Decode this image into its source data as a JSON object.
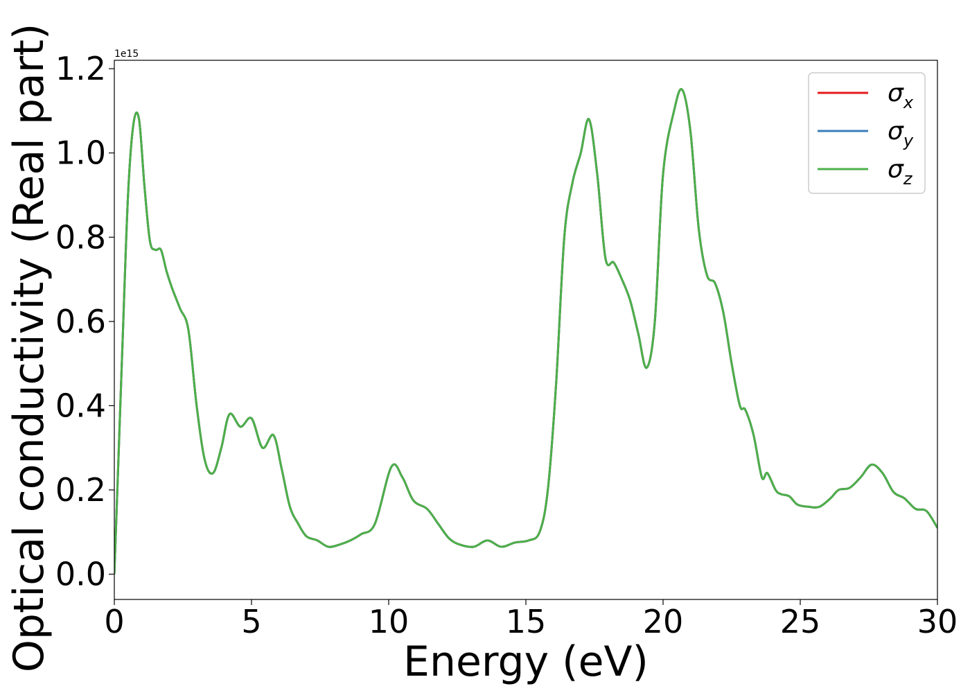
{
  "chart_data": {
    "type": "line",
    "xlabel": "Energy (eV)",
    "ylabel": "Optical conductivity (Real part)",
    "y_offset_label": "1e15",
    "y_scale": 1000000000000000.0,
    "xlim": [
      0,
      30
    ],
    "ylim": [
      -0.06,
      1.22
    ],
    "x_ticks": [
      0,
      5,
      10,
      15,
      20,
      25,
      30
    ],
    "x_tick_labels": [
      "0",
      "5",
      "10",
      "15",
      "20",
      "25",
      "30"
    ],
    "y_ticks": [
      0.0,
      0.2,
      0.4,
      0.6,
      0.8,
      1.0,
      1.2
    ],
    "y_tick_labels": [
      "0.0",
      "0.2",
      "0.4",
      "0.6",
      "0.8",
      "1.0",
      "1.2"
    ],
    "grid": false,
    "legend_position": "top-right",
    "x": [
      0,
      0.1,
      0.3,
      0.5,
      0.7,
      0.9,
      1.1,
      1.3,
      1.5,
      1.7,
      1.9,
      2.1,
      2.4,
      2.7,
      3.0,
      3.3,
      3.6,
      3.9,
      4.2,
      4.6,
      5.0,
      5.4,
      5.8,
      6.1,
      6.4,
      6.7,
      7.0,
      7.4,
      7.8,
      8.2,
      8.6,
      9.0,
      9.5,
      10.1,
      10.5,
      10.9,
      11.4,
      11.8,
      12.2,
      12.6,
      13.1,
      13.6,
      14.1,
      14.6,
      15.1,
      15.5,
      15.8,
      16.1,
      16.4,
      16.7,
      17.0,
      17.3,
      17.6,
      17.9,
      18.2,
      18.5,
      18.8,
      19.1,
      19.4,
      19.7,
      20.0,
      20.4,
      20.7,
      21.0,
      21.3,
      21.6,
      21.9,
      22.2,
      22.5,
      22.8,
      23.0,
      23.3,
      23.6,
      23.8,
      24.1,
      24.3,
      24.6,
      24.9,
      25.3,
      25.7,
      26.1,
      26.4,
      26.8,
      27.2,
      27.6,
      28.0,
      28.4,
      28.8,
      29.2,
      29.6,
      30.0
    ],
    "series": [
      {
        "name": "σx",
        "color": "#e41a1c",
        "values": [
          0.0,
          0.18,
          0.55,
          0.9,
          1.07,
          1.08,
          0.92,
          0.79,
          0.77,
          0.77,
          0.72,
          0.68,
          0.63,
          0.58,
          0.4,
          0.27,
          0.24,
          0.3,
          0.38,
          0.35,
          0.37,
          0.3,
          0.33,
          0.25,
          0.16,
          0.12,
          0.09,
          0.08,
          0.065,
          0.07,
          0.08,
          0.095,
          0.12,
          0.255,
          0.23,
          0.175,
          0.155,
          0.12,
          0.085,
          0.07,
          0.065,
          0.08,
          0.065,
          0.075,
          0.08,
          0.1,
          0.2,
          0.45,
          0.8,
          0.93,
          1.0,
          1.08,
          0.95,
          0.75,
          0.74,
          0.7,
          0.65,
          0.57,
          0.49,
          0.6,
          0.95,
          1.1,
          1.15,
          1.05,
          0.82,
          0.71,
          0.69,
          0.62,
          0.5,
          0.4,
          0.39,
          0.33,
          0.23,
          0.24,
          0.2,
          0.19,
          0.185,
          0.165,
          0.16,
          0.16,
          0.18,
          0.2,
          0.205,
          0.23,
          0.26,
          0.24,
          0.195,
          0.18,
          0.155,
          0.15,
          0.11
        ]
      },
      {
        "name": "σy",
        "color": "#377eb8",
        "values": [
          0.0,
          0.18,
          0.55,
          0.9,
          1.07,
          1.08,
          0.92,
          0.79,
          0.77,
          0.77,
          0.72,
          0.68,
          0.63,
          0.58,
          0.4,
          0.27,
          0.24,
          0.3,
          0.38,
          0.35,
          0.37,
          0.3,
          0.33,
          0.25,
          0.16,
          0.12,
          0.09,
          0.08,
          0.065,
          0.07,
          0.08,
          0.095,
          0.12,
          0.255,
          0.23,
          0.175,
          0.155,
          0.12,
          0.085,
          0.07,
          0.065,
          0.08,
          0.065,
          0.075,
          0.08,
          0.1,
          0.2,
          0.45,
          0.8,
          0.93,
          1.0,
          1.08,
          0.95,
          0.75,
          0.74,
          0.7,
          0.65,
          0.57,
          0.49,
          0.6,
          0.95,
          1.1,
          1.15,
          1.05,
          0.82,
          0.71,
          0.69,
          0.62,
          0.5,
          0.4,
          0.39,
          0.33,
          0.23,
          0.24,
          0.2,
          0.19,
          0.185,
          0.165,
          0.16,
          0.16,
          0.18,
          0.2,
          0.205,
          0.23,
          0.26,
          0.24,
          0.195,
          0.18,
          0.155,
          0.15,
          0.11
        ]
      },
      {
        "name": "σz",
        "color": "#4daf4a",
        "values": [
          0.0,
          0.18,
          0.55,
          0.9,
          1.07,
          1.08,
          0.92,
          0.79,
          0.77,
          0.77,
          0.72,
          0.68,
          0.63,
          0.58,
          0.4,
          0.27,
          0.24,
          0.3,
          0.38,
          0.35,
          0.37,
          0.3,
          0.33,
          0.25,
          0.16,
          0.12,
          0.09,
          0.08,
          0.065,
          0.07,
          0.08,
          0.095,
          0.12,
          0.255,
          0.23,
          0.175,
          0.155,
          0.12,
          0.085,
          0.07,
          0.065,
          0.08,
          0.065,
          0.075,
          0.08,
          0.1,
          0.2,
          0.45,
          0.8,
          0.93,
          1.0,
          1.08,
          0.95,
          0.75,
          0.74,
          0.7,
          0.65,
          0.57,
          0.49,
          0.6,
          0.95,
          1.1,
          1.15,
          1.05,
          0.82,
          0.71,
          0.69,
          0.62,
          0.5,
          0.4,
          0.39,
          0.33,
          0.23,
          0.24,
          0.2,
          0.19,
          0.185,
          0.165,
          0.16,
          0.16,
          0.18,
          0.2,
          0.205,
          0.23,
          0.26,
          0.24,
          0.195,
          0.18,
          0.155,
          0.15,
          0.11
        ]
      }
    ],
    "legend": [
      {
        "symbol": "σ",
        "subscript": "x",
        "color": "#e41a1c"
      },
      {
        "symbol": "σ",
        "subscript": "y",
        "color": "#377eb8"
      },
      {
        "symbol": "σ",
        "subscript": "z",
        "color": "#4daf4a"
      }
    ]
  }
}
